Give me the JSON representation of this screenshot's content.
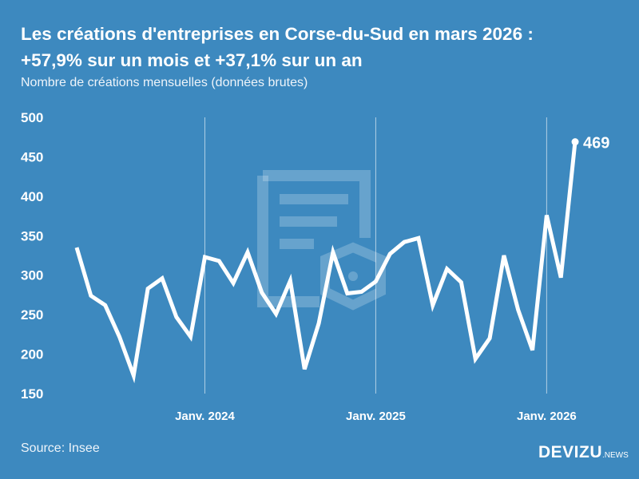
{
  "header": {
    "title_line1": "Les créations d'entreprises en Corse-du-Sud en mars 2026 :",
    "title_line2": "+57,9% sur un mois et +37,1% sur un an",
    "subtitle": "Nombre de créations mensuelles (données brutes)"
  },
  "footer": {
    "source": "Source: Insee",
    "logo_main": "DEVIZU",
    "logo_suffix": ".NEWS"
  },
  "colors": {
    "background": "#3d89bf",
    "line": "#ffffff"
  },
  "chart_data": {
    "type": "line",
    "title": "Les créations d'entreprises en Corse-du-Sud en mars 2026 : +57,9% sur un mois et +37,1% sur un an",
    "ylabel": "Nombre de créations mensuelles (données brutes)",
    "ylim": [
      150,
      500
    ],
    "yticks": [
      "500",
      "450",
      "400",
      "350",
      "300",
      "250",
      "200",
      "150"
    ],
    "xticks": [
      {
        "label": "Janv. 2024",
        "index": 9
      },
      {
        "label": "Janv. 2025",
        "index": 21
      },
      {
        "label": "Janv. 2026",
        "index": 33
      }
    ],
    "x_start": "2023-04",
    "values": [
      335,
      274,
      262,
      222,
      173,
      283,
      296,
      247,
      222,
      323,
      318,
      290,
      329,
      278,
      251,
      293,
      181,
      239,
      329,
      277,
      279,
      292,
      327,
      342,
      347,
      262,
      308,
      291,
      194,
      220,
      325,
      256,
      205,
      376,
      297,
      469
    ],
    "last_label": "469"
  }
}
